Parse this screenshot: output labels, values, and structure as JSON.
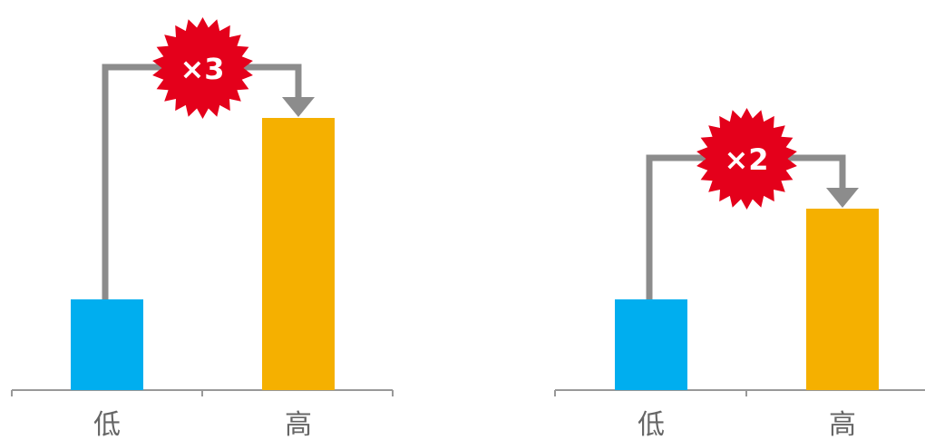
{
  "chart_data": [
    {
      "type": "bar",
      "categories": [
        "低",
        "高"
      ],
      "values": [
        1,
        3
      ],
      "ylim": [
        0,
        3.3
      ],
      "multiplier_label": "×3",
      "grid": false
    },
    {
      "type": "bar",
      "categories": [
        "低",
        "高"
      ],
      "values": [
        1,
        2
      ],
      "ylim": [
        0,
        3.3
      ],
      "multiplier_label": "×2",
      "grid": false
    }
  ],
  "colors": {
    "low_bar": "#00AEEF",
    "high_bar": "#F5B000",
    "badge": "#E4001B",
    "connector": "#8C8C8C",
    "axis": "#999999"
  }
}
